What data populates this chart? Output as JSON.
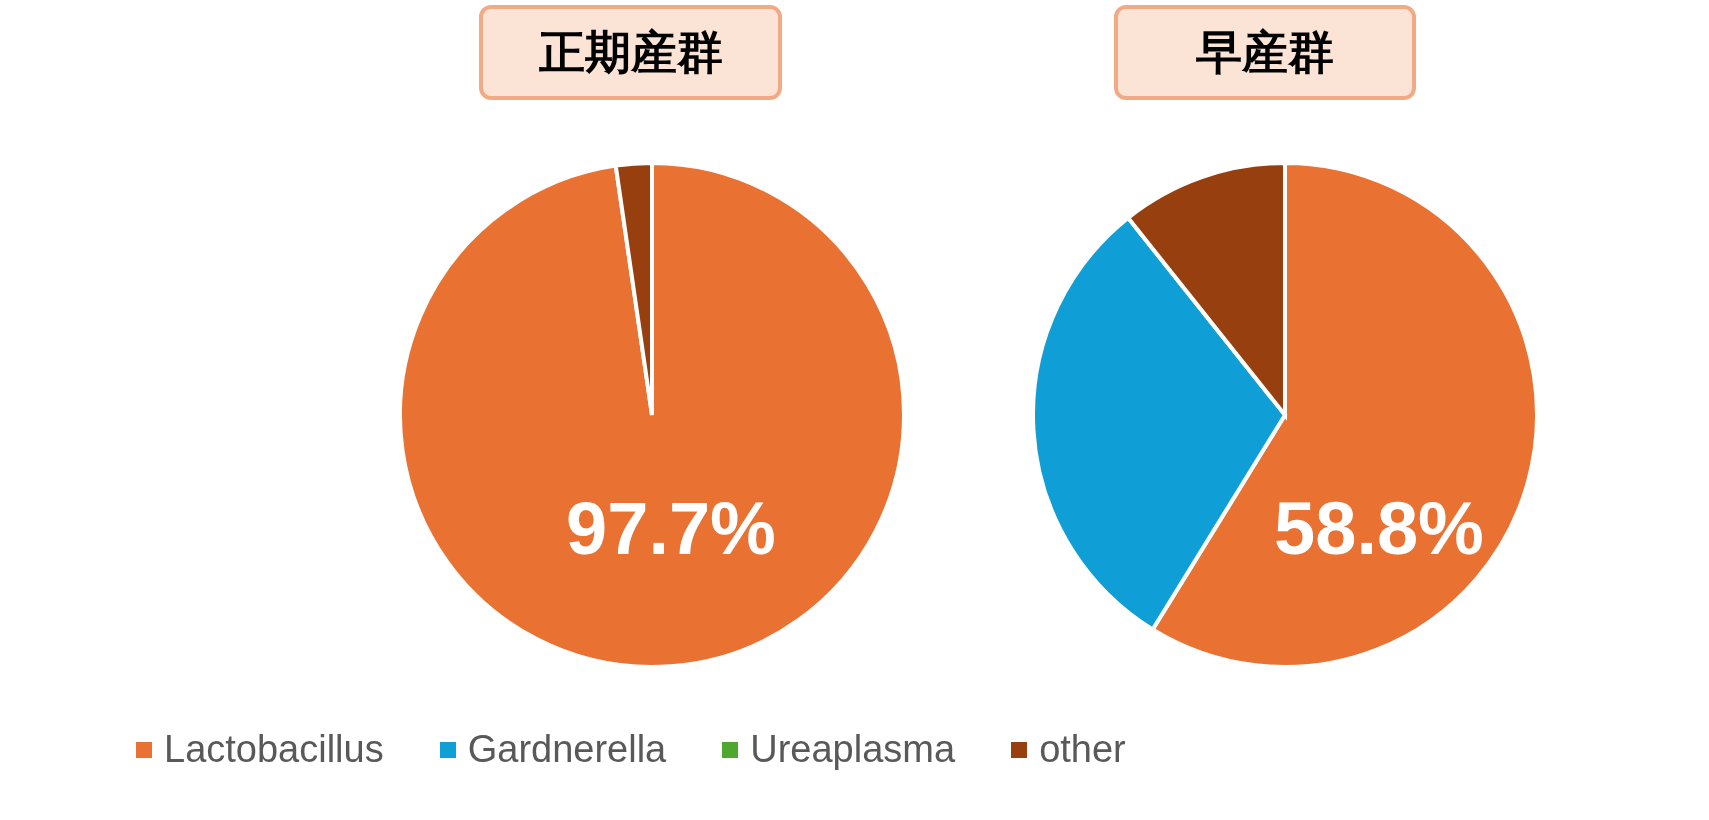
{
  "chart_data": [
    {
      "type": "pie",
      "title": "正期産群",
      "categories": [
        "Lactobacillus",
        "Gardnerella",
        "Ureaplasma",
        "other"
      ],
      "values": [
        97.7,
        0,
        0,
        2.3
      ],
      "colors": [
        "#e97132",
        "#0f9ed5",
        "#4ea72e",
        "#973f0f"
      ],
      "value_labels": [
        "97.7%",
        null,
        null,
        null
      ],
      "legend": "bottom"
    },
    {
      "type": "pie",
      "title": "早産群",
      "categories": [
        null,
        null,
        null,
        null
      ],
      "values": [
        58.8,
        30.5,
        0,
        10.7
      ],
      "colors": [
        "#e97132",
        "#0f9ed5",
        "#4ea72e",
        "#973f0f"
      ],
      "value_labels": [
        "58.8%",
        null,
        null,
        null
      ]
    }
  ]
}
